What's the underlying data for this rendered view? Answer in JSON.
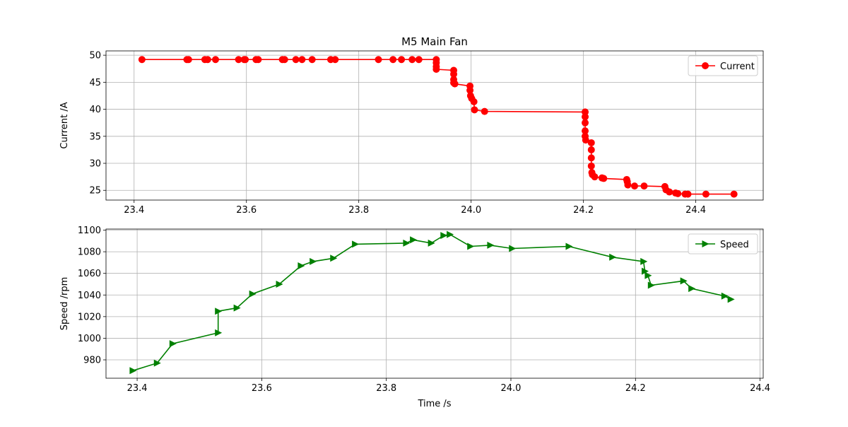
{
  "chart_data": [
    {
      "type": "line",
      "title": "M5 Main Fan",
      "xlabel": "",
      "ylabel": "Current /A",
      "xlim": [
        23.35,
        24.52
      ],
      "ylim": [
        23.2,
        50.8
      ],
      "xticks": [
        23.4,
        23.6,
        23.8,
        24.0,
        24.2,
        24.4
      ],
      "yticks": [
        25,
        30,
        35,
        40,
        45,
        50
      ],
      "grid": true,
      "legend": "top-right",
      "series": [
        {
          "name": "Current",
          "color": "#ff0000",
          "marker": "circle",
          "x": [
            23.414,
            23.494,
            23.497,
            23.526,
            23.531,
            23.545,
            23.586,
            23.596,
            23.598,
            23.617,
            23.621,
            23.664,
            23.668,
            23.688,
            23.699,
            23.717,
            23.75,
            23.758,
            23.835,
            23.861,
            23.876,
            23.895,
            23.907,
            23.938,
            23.938,
            23.938,
            23.938,
            23.969,
            23.969,
            23.969,
            23.969,
            23.971,
            23.998,
            23.998,
            23.999,
            24.001,
            24.005,
            24.006,
            24.024,
            24.203,
            24.203,
            24.203,
            24.203,
            24.203,
            24.204,
            24.214,
            24.214,
            24.214,
            24.214,
            24.215,
            24.216,
            24.22,
            24.233,
            24.236,
            24.277,
            24.278,
            24.279,
            24.291,
            24.308,
            24.345,
            24.347,
            24.353,
            24.364,
            24.368,
            24.381,
            24.386,
            24.418,
            24.468
          ],
          "y": [
            49.2,
            49.2,
            49.2,
            49.2,
            49.2,
            49.2,
            49.2,
            49.2,
            49.2,
            49.2,
            49.2,
            49.2,
            49.2,
            49.2,
            49.2,
            49.2,
            49.2,
            49.2,
            49.2,
            49.2,
            49.2,
            49.2,
            49.2,
            49.2,
            48.6,
            47.9,
            47.4,
            47.2,
            46.5,
            45.5,
            44.9,
            44.7,
            44.3,
            43.5,
            42.5,
            42.0,
            41.4,
            39.9,
            39.6,
            39.5,
            38.6,
            37.5,
            36.0,
            35.0,
            34.3,
            33.8,
            32.5,
            31.0,
            29.5,
            28.3,
            27.9,
            27.5,
            27.3,
            27.2,
            27.0,
            26.6,
            26.0,
            25.8,
            25.8,
            25.7,
            25.1,
            24.7,
            24.5,
            24.4,
            24.3,
            24.3,
            24.3,
            24.3
          ]
        }
      ]
    },
    {
      "type": "line",
      "title": "",
      "xlabel": "Time /s",
      "ylabel": "Speed /rpm",
      "xlim": [
        23.35,
        24.405
      ],
      "ylim": [
        963,
        1101
      ],
      "xticks": [
        23.4,
        23.6,
        23.8,
        24.0,
        24.2,
        24.4
      ],
      "yticks": [
        980,
        1000,
        1020,
        1040,
        1060,
        1080,
        1100
      ],
      "grid": true,
      "legend": "top-right",
      "series": [
        {
          "name": "Speed",
          "color": "#008000",
          "marker": "triangle-right",
          "x": [
            23.393,
            23.432,
            23.457,
            23.53,
            23.53,
            23.56,
            23.585,
            23.628,
            23.663,
            23.682,
            23.715,
            23.75,
            23.832,
            23.843,
            23.872,
            23.892,
            23.902,
            23.935,
            23.967,
            24.002,
            24.093,
            24.163,
            24.213,
            24.215,
            24.22,
            24.225,
            24.277,
            24.29,
            24.343,
            24.353
          ],
          "y": [
            970,
            977,
            995,
            1005,
            1025,
            1028,
            1041,
            1050,
            1067,
            1071,
            1074,
            1087,
            1088,
            1091,
            1088,
            1095,
            1096,
            1085,
            1086,
            1083,
            1085,
            1075,
            1071,
            1062,
            1058,
            1049,
            1053,
            1046,
            1039,
            1036
          ]
        }
      ]
    }
  ]
}
